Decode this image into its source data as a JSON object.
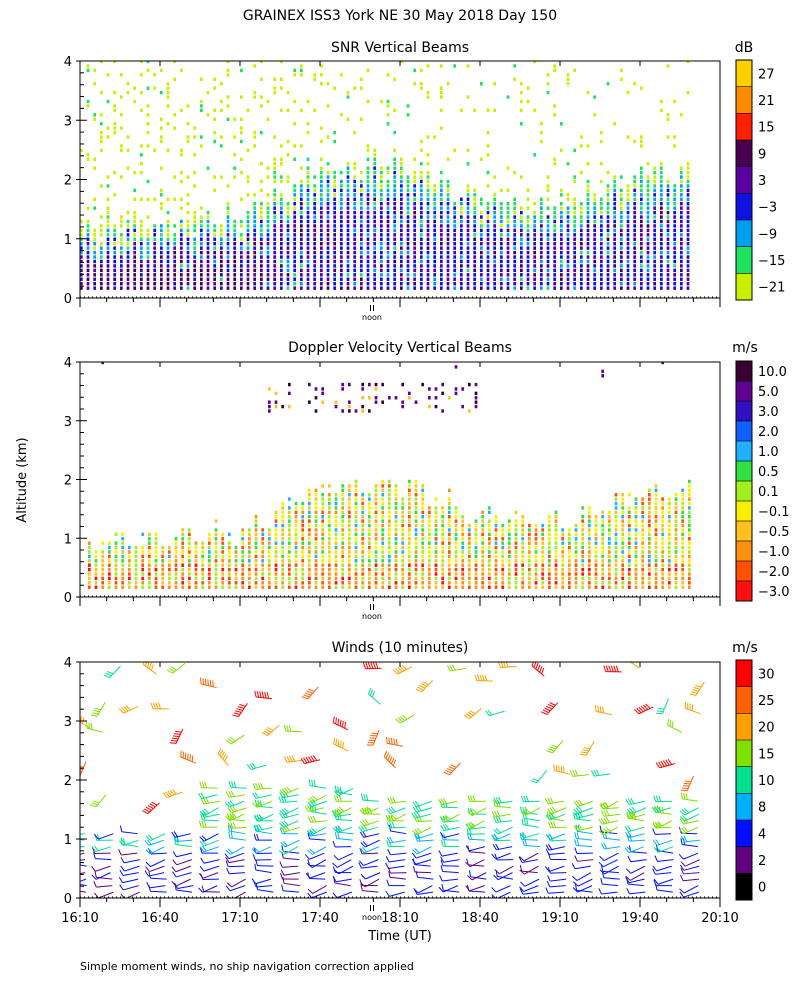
{
  "title": "GRAINEX ISS3 York NE  30 May 2018 Day 150",
  "ylabel": "Altitude (km)",
  "xlabel": "Time (UT)",
  "footnote": "Simple moment winds, no ship navigation correction applied",
  "noon_label": "noon",
  "chart_data": [
    {
      "type": "heatmap",
      "title": "SNR Vertical Beams",
      "units": "dB",
      "ylim": [
        0,
        4
      ],
      "yticks": [
        "0",
        "1",
        "2",
        "3",
        "4"
      ],
      "xlim": [
        "16:10",
        "20:10"
      ],
      "colorbar_labels": [
        "27",
        "21",
        "15",
        "9",
        "3",
        "−3",
        "−9",
        "−15",
        "−21"
      ],
      "colorbar_colors": [
        "#ffd000",
        "#ff8c00",
        "#ff2000",
        "#4a0050",
        "#5a00a0",
        "#1010e0",
        "#00a0f0",
        "#20e060",
        "#c8f000"
      ],
      "approx_top_of_strong_echo_km": [
        {
          "time": "16:10",
          "top_km": 0.9
        },
        {
          "time": "17:10",
          "top_km": 1.1
        },
        {
          "time": "17:40",
          "top_km": 1.9
        },
        {
          "time": "18:10",
          "top_km": 2.0
        },
        {
          "time": "18:40",
          "top_km": 1.4
        },
        {
          "time": "19:10",
          "top_km": 1.3
        },
        {
          "time": "19:40",
          "top_km": 1.8
        },
        {
          "time": "20:00",
          "top_km": 1.9
        }
      ]
    },
    {
      "type": "heatmap",
      "title": "Doppler Velocity Vertical Beams",
      "units": "m/s",
      "ylim": [
        0,
        4
      ],
      "yticks": [
        "0",
        "1",
        "2",
        "3",
        "4"
      ],
      "xlim": [
        "16:10",
        "20:10"
      ],
      "colorbar_labels": [
        "10.0",
        "5.0",
        "3.0",
        "2.0",
        "1.0",
        "0.5",
        "0.1",
        "−0.1",
        "−0.5",
        "−1.0",
        "−2.0",
        "−3.0"
      ],
      "colorbar_colors": [
        "#3a0030",
        "#600090",
        "#3010c0",
        "#1060ff",
        "#20b0ff",
        "#30e040",
        "#a0f020",
        "#f8f000",
        "#ffc020",
        "#ff9010",
        "#ff5000",
        "#ff1010"
      ]
    },
    {
      "type": "scatter",
      "title": "Winds (10 minutes)",
      "units": "m/s",
      "ylim": [
        0,
        4
      ],
      "yticks": [
        "0",
        "1",
        "2",
        "3",
        "4"
      ],
      "xticks": [
        "16:10",
        "16:40",
        "17:10",
        "17:40",
        "18:10",
        "18:40",
        "19:10",
        "19:40",
        "20:10"
      ],
      "colorbar_labels": [
        "30",
        "25",
        "20",
        "15",
        "10",
        "8",
        "4",
        "2",
        "0"
      ],
      "colorbar_colors": [
        "#ff0000",
        "#ff6000",
        "#ffa000",
        "#80e000",
        "#00e090",
        "#00b0ff",
        "#0010ff",
        "#600080",
        "#000000"
      ]
    }
  ]
}
